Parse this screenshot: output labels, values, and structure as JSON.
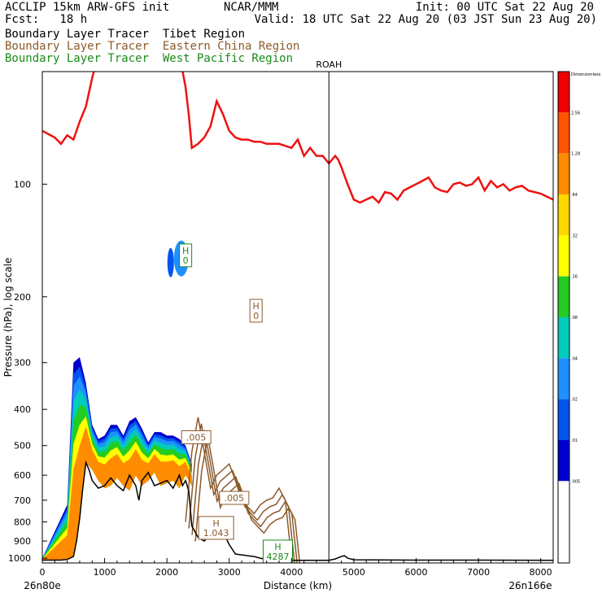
{
  "header": {
    "line1_left": "ACCLIP 15km ARW-GFS init",
    "line1_center": "NCAR/MMM",
    "line1_right": "Init: 00 UTC Sat 22 Aug 20",
    "line2_left": "Fcst:   18 h",
    "line2_right": "Valid: 18 UTC Sat 22 Aug 20 (03 JST Sun 23 Aug 20)",
    "tracer_tibet": "Boundary Layer Tracer  Tibet Region",
    "tracer_eastern_china": "Boundary Layer Tracer  Eastern China Region",
    "tracer_west_pacific": "Boundary Layer Tracer  West Pacific Region"
  },
  "colors": {
    "tibet": "#000000",
    "eastern_china": "#8b5a2b",
    "west_pacific": "#1a8a1a",
    "tropopause": "#ee1111",
    "terrain": "#000000"
  },
  "chart_data": {
    "type": "area",
    "title": "",
    "xlabel": "Distance (km)",
    "ylabel": "Pressure (hPa), log scale",
    "x_range": [
      0,
      8200
    ],
    "y_range_hpa": [
      1030,
      50
    ],
    "y_scale": "log",
    "x_ticks": [
      "0",
      "1000",
      "2000",
      "3000",
      "4000",
      "5000",
      "6000",
      "7000",
      "8000"
    ],
    "x_tick_values": [
      0,
      1000,
      2000,
      3000,
      4000,
      5000,
      6000,
      7000,
      8000
    ],
    "y_ticks": [
      "100",
      "200",
      "300",
      "400",
      "500",
      "600",
      "700",
      "800",
      "900",
      "1000"
    ],
    "y_tick_values": [
      100,
      200,
      300,
      400,
      500,
      600,
      700,
      800,
      900,
      1000
    ],
    "left_endpoint": "26n80e",
    "right_endpoint": "26n166e",
    "vertical_marker": {
      "label": "ROAH",
      "x_km": 4600
    },
    "labels": [
      {
        "text": "H",
        "value": "0",
        "x_km": 2300,
        "p_hpa": 155,
        "series": "west_pacific"
      },
      {
        "text": "H",
        "value": "0",
        "x_km": 3430,
        "p_hpa": 218,
        "series": "eastern_china"
      },
      {
        "text": "",
        "value": ".005",
        "x_km": 2470,
        "p_hpa": 475,
        "series": "eastern_china"
      },
      {
        "text": "",
        "value": ".005",
        "x_km": 3080,
        "p_hpa": 690,
        "series": "eastern_china"
      },
      {
        "text": "H",
        "value": "1.043",
        "x_km": 2790,
        "p_hpa": 830,
        "series": "eastern_china"
      },
      {
        "text": "H",
        "value": "4287",
        "x_km": 3780,
        "p_hpa": 960,
        "series": "west_pacific"
      }
    ],
    "colorbar": {
      "title": "Dimensionless",
      "ticks": [
        "2.56",
        "1.28",
        ".64",
        ".32",
        ".16",
        ".08",
        ".04",
        ".02",
        ".01",
        ".005"
      ],
      "colors": [
        "#ee0000",
        "#ff5500",
        "#ff8c00",
        "#ffd700",
        "#ffff00",
        "#22cc22",
        "#00ccbb",
        "#1e90ff",
        "#0055ee",
        "#0000cc",
        "#ffffff",
        "#ffffff"
      ]
    },
    "series": [
      {
        "name": "tropopause",
        "x": [
          0,
          200,
          300,
          400,
          500,
          600,
          700,
          800,
          900,
          1000,
          1100,
          1200,
          1300,
          1400,
          1500,
          1600,
          1700,
          1800,
          1900,
          2000,
          2100,
          2200,
          2300,
          2350,
          2400,
          2500,
          2600,
          2700,
          2800,
          2900,
          3000,
          3100,
          3200,
          3300,
          3400,
          3500,
          3600,
          3700,
          3800,
          3900,
          4000,
          4100,
          4200,
          4300,
          4400,
          4500,
          4600,
          4700,
          4750,
          4800,
          4900,
          5000,
          5100,
          5200,
          5300,
          5400,
          5500,
          5600,
          5700,
          5800,
          5900,
          6000,
          6100,
          6200,
          6300,
          6400,
          6500,
          6600,
          6700,
          6800,
          6900,
          7000,
          7100,
          7200,
          7300,
          7400,
          7500,
          7600,
          7700,
          7800,
          7900,
          8000,
          8100,
          8200
        ],
        "y": [
          72,
          75,
          78,
          74,
          76,
          68,
          62,
          52,
          45,
          40,
          38,
          40,
          42,
          45,
          44,
          46,
          48,
          42,
          45,
          40,
          38,
          45,
          55,
          65,
          80,
          78,
          75,
          70,
          60,
          65,
          72,
          75,
          76,
          76,
          77,
          77,
          78,
          78,
          78,
          79,
          80,
          76,
          84,
          80,
          84,
          84,
          88,
          84,
          86,
          90,
          100,
          110,
          112,
          110,
          108,
          112,
          105,
          106,
          110,
          104,
          102,
          100,
          98,
          96,
          102,
          104,
          105,
          100,
          99,
          101,
          100,
          96,
          104,
          98,
          102,
          100,
          104,
          102,
          101,
          104,
          105,
          106,
          108,
          110
        ]
      },
      {
        "name": "terrain",
        "x": [
          0,
          100,
          200,
          300,
          400,
          500,
          550,
          600,
          650,
          700,
          750,
          800,
          900,
          1000,
          1100,
          1200,
          1300,
          1400,
          1500,
          1550,
          1600,
          1700,
          1800,
          1900,
          2000,
          2100,
          2200,
          2250,
          2300,
          2350,
          2400,
          2500,
          2600,
          2700,
          2800,
          2900,
          3000,
          3100,
          3200,
          3300,
          3400,
          3500,
          3600,
          3700,
          3800,
          3900,
          4000,
          4200,
          4400,
          4600,
          4700,
          4800,
          4850,
          4900,
          5000,
          6000,
          7000,
          8200
        ],
        "y": [
          1012,
          1012,
          1012,
          1012,
          1008,
          990,
          900,
          780,
          650,
          555,
          580,
          620,
          650,
          640,
          610,
          640,
          660,
          600,
          640,
          700,
          620,
          590,
          640,
          630,
          620,
          650,
          600,
          640,
          620,
          660,
          820,
          880,
          900,
          860,
          820,
          850,
          920,
          975,
          980,
          985,
          990,
          1000,
          1008,
          1010,
          1012,
          1012,
          1013,
          1013,
          1013,
          1013,
          1005,
          990,
          985,
          1000,
          1010,
          1012,
          1012,
          1013
        ]
      },
      {
        "name": "Boundary Layer Tracer  Tibet Region",
        "type": "filled_contour",
        "note_levels": [
          "0.01",
          "0.02",
          "0.04",
          "0.08",
          "0.16",
          "0.32",
          "0.64"
        ],
        "x": [
          0,
          400,
          500,
          600,
          700,
          800,
          900,
          1000,
          1100,
          1200,
          1300,
          1400,
          1500,
          1600,
          1700,
          1800,
          1900,
          2000,
          2100,
          2200,
          2300,
          2400
        ],
        "top_hpa": [
          1000,
          720,
          300,
          290,
          340,
          440,
          480,
          470,
          440,
          440,
          470,
          430,
          420,
          450,
          490,
          460,
          460,
          470,
          470,
          480,
          500,
          560
        ],
        "bottom_hpa": [
          1012,
          1012,
          990,
          780,
          555,
          580,
          620,
          650,
          640,
          610,
          640,
          660,
          600,
          640,
          620,
          590,
          640,
          630,
          620,
          650,
          600,
          640
        ]
      },
      {
        "name": "Boundary Layer Tracer  Eastern China Region",
        "type": "contour_lines",
        "levels": [
          ".005"
        ],
        "x": [
          2300,
          2400,
          2500,
          2600,
          2700,
          2800,
          2900,
          3000,
          3100,
          3200,
          3300,
          3400,
          3500,
          3600,
          3700,
          3800,
          3900,
          4000
        ],
        "p_hpa": [
          800,
          520,
          420,
          520,
          650,
          600,
          580,
          560,
          620,
          700,
          730,
          760,
          720,
          700,
          690,
          650,
          700,
          1000
        ]
      }
    ]
  }
}
